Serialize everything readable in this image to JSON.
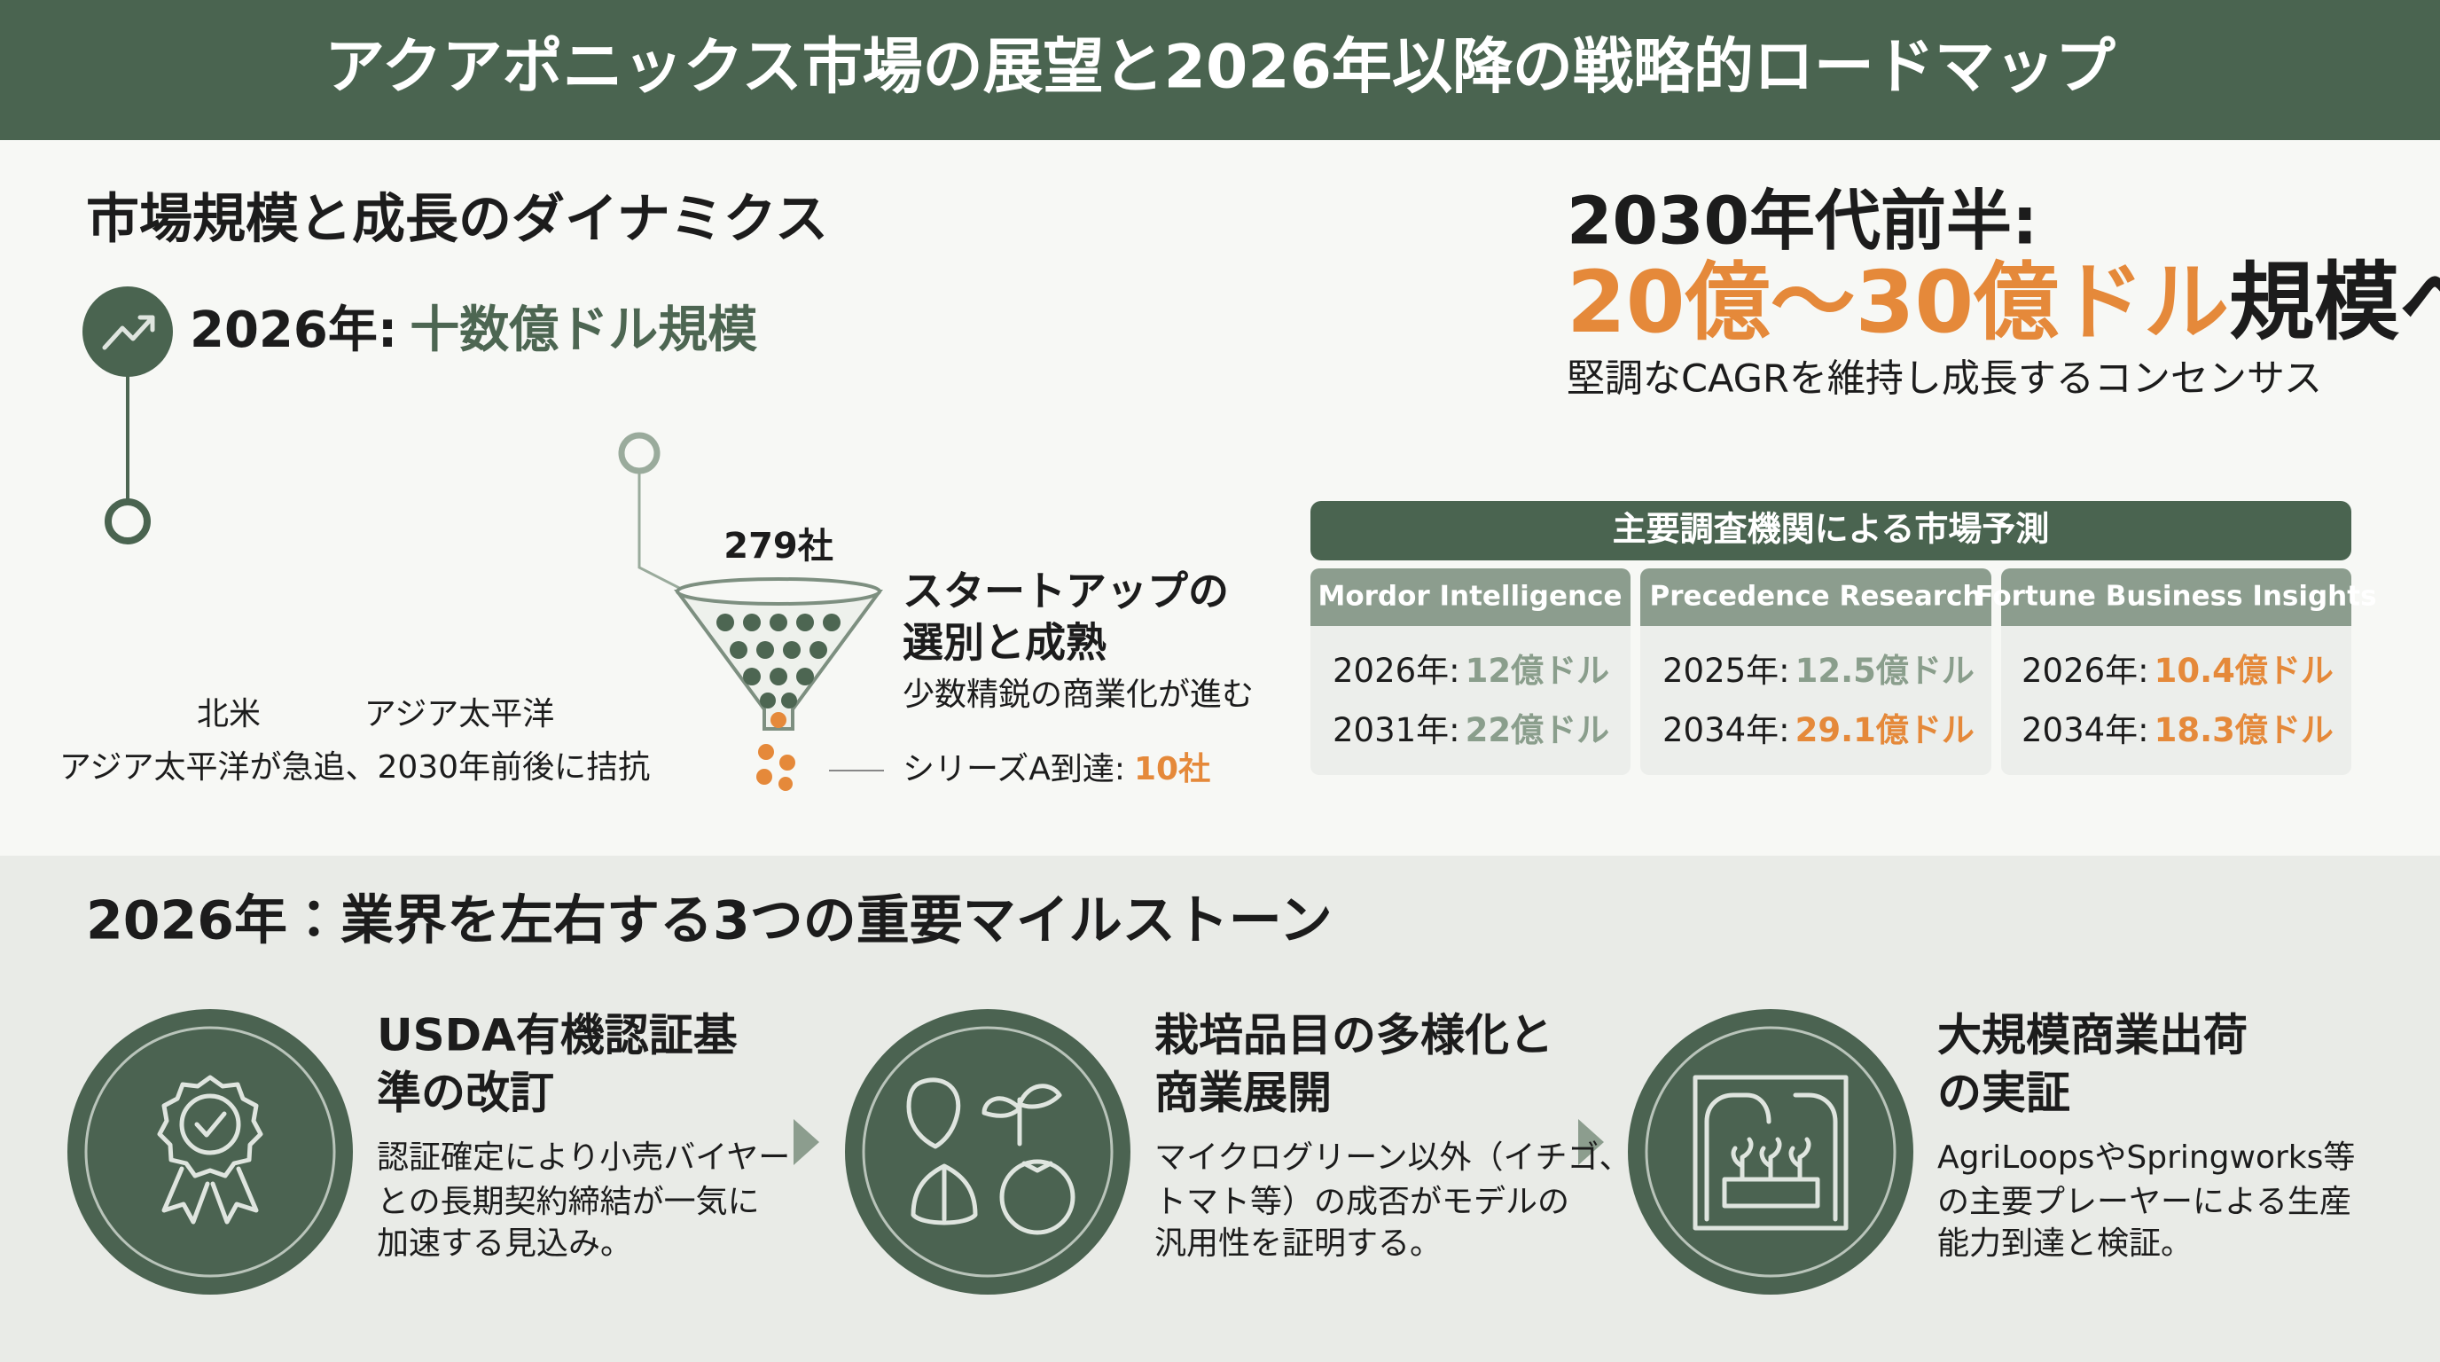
{
  "header": {
    "title": "アクアポニックス市場の展望と2026年以降の戦略的ロードマップ"
  },
  "market": {
    "heading": "市場規模と成長のダイナミクス",
    "milestone": {
      "year_label": "2026年:",
      "value": "十数億ドル規模"
    },
    "regions": {
      "labels": [
        "北米",
        "アジア太平洋"
      ],
      "note": "アジア太平洋が急追、2030年前後に拮抗"
    },
    "funnel": {
      "count": "279社",
      "title_lines": [
        "スタートアップの",
        "選別と成熟"
      ],
      "subtitle": "少数精鋭の商業化が進む",
      "series_a": {
        "label": "シリーズA到達:",
        "value": "10社"
      }
    }
  },
  "outlook": {
    "period": "2030年代前半:",
    "range": "20億〜30億ドル",
    "suffix": "規模へ",
    "note": "堅調なCAGRを維持し成長するコンセンサス"
  },
  "forecasts": {
    "title": "主要調査機関による市場予測",
    "sources": [
      {
        "name": "Mordor Intelligence",
        "rows": [
          {
            "label": "2026年:",
            "value": "12億ドル"
          },
          {
            "label": "2031年:",
            "value": "22億ドル"
          }
        ]
      },
      {
        "name": "Precedence Research",
        "rows": [
          {
            "label": "2025年:",
            "value": "12.5億ドル"
          },
          {
            "label": "2034年:",
            "value": "29.1億ドル"
          }
        ]
      },
      {
        "name": "Fortune Business Insights",
        "rows": [
          {
            "label": "2026年:",
            "value": "10.4億ドル"
          },
          {
            "label": "2034年:",
            "value": "18.3億ドル"
          }
        ]
      }
    ]
  },
  "milestones": {
    "title": "2026年：業界を左右する3つの重要マイルストーン",
    "items": [
      {
        "title_lines": [
          "USDA有機認証基",
          "準の改訂"
        ],
        "description_lines": [
          "認証確定により小売バイヤー",
          "との長期契約締結が一気に",
          "加速する見込み。"
        ]
      },
      {
        "title_lines": [
          "栽培品目の多様化と",
          "商業展開"
        ],
        "description_lines": [
          "マイクログリーン以外（イチゴ、",
          "トマト等）の成否がモデルの",
          "汎用性を証明する。"
        ]
      },
      {
        "title_lines": [
          "大規模商業出荷",
          "の実証"
        ],
        "description_lines": [
          "AgriLoopsやSpringworks等",
          "の主要プレーヤーによる生産",
          "能力到達と検証。"
        ]
      }
    ]
  }
}
